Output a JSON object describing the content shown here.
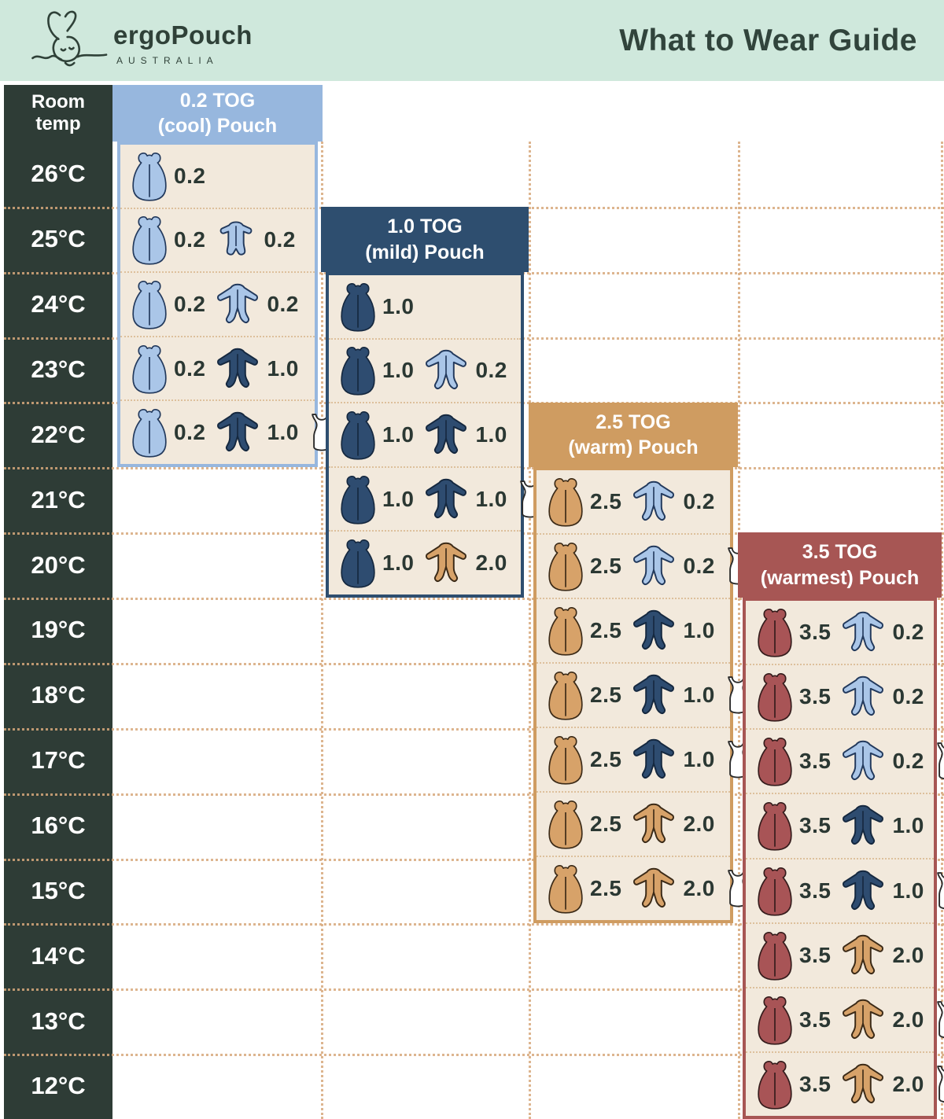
{
  "header": {
    "brand": "ergoPouch",
    "brand_sub": "AUSTRALIA",
    "title": "What to Wear Guide"
  },
  "table": {
    "room_temp_label": "Room\ntemp",
    "temps": [
      "26°C",
      "25°C",
      "24°C",
      "23°C",
      "22°C",
      "21°C",
      "20°C",
      "19°C",
      "18°C",
      "17°C",
      "16°C",
      "15°C",
      "14°C",
      "13°C",
      "12°C"
    ]
  },
  "colors": {
    "banner_bg": "#cfe8dc",
    "temp_column_bg": "#2e3c36",
    "panel_body_bg": "#f2e9dc",
    "tog_02_header": "#97b7de",
    "tog_10_header": "#2e4e6f",
    "tog_25_header": "#cf9c61",
    "tog_35_header": "#a75654",
    "grid_dots": "#d8a97c",
    "text_dark": "#2b3833"
  },
  "panels": [
    {
      "title_line1": "0.2 TOG",
      "title_line2": "(cool) Pouch",
      "rows": [
        {
          "temp": "26°C",
          "items": [
            {
              "icon": "pouch",
              "color": "lightblue",
              "tog": "0.2"
            }
          ]
        },
        {
          "temp": "25°C",
          "items": [
            {
              "icon": "pouch",
              "color": "lightblue",
              "tog": "0.2"
            },
            {
              "icon": "romper",
              "color": "lightblue",
              "tog": "0.2"
            }
          ]
        },
        {
          "temp": "24°C",
          "items": [
            {
              "icon": "pouch",
              "color": "lightblue",
              "tog": "0.2"
            },
            {
              "icon": "onesie",
              "color": "lightblue",
              "tog": "0.2"
            }
          ]
        },
        {
          "temp": "23°C",
          "items": [
            {
              "icon": "pouch",
              "color": "lightblue",
              "tog": "0.2"
            },
            {
              "icon": "onesie",
              "color": "navy",
              "tog": "1.0"
            }
          ]
        },
        {
          "temp": "22°C",
          "items": [
            {
              "icon": "pouch",
              "color": "lightblue",
              "tog": "0.2"
            },
            {
              "icon": "onesie",
              "color": "navy",
              "tog": "1.0"
            },
            {
              "icon": "singlet",
              "color": "white",
              "tog": ""
            }
          ]
        }
      ]
    },
    {
      "title_line1": "1.0 TOG",
      "title_line2": "(mild) Pouch",
      "rows": [
        {
          "temp": "24°C",
          "items": [
            {
              "icon": "pouch",
              "color": "navy",
              "tog": "1.0"
            }
          ]
        },
        {
          "temp": "23°C",
          "items": [
            {
              "icon": "pouch",
              "color": "navy",
              "tog": "1.0"
            },
            {
              "icon": "onesie",
              "color": "lightblue",
              "tog": "0.2"
            }
          ]
        },
        {
          "temp": "22°C",
          "items": [
            {
              "icon": "pouch",
              "color": "navy",
              "tog": "1.0"
            },
            {
              "icon": "onesie",
              "color": "navy",
              "tog": "1.0"
            }
          ]
        },
        {
          "temp": "21°C",
          "items": [
            {
              "icon": "pouch",
              "color": "navy",
              "tog": "1.0"
            },
            {
              "icon": "onesie",
              "color": "navy",
              "tog": "1.0"
            },
            {
              "icon": "singlet",
              "color": "white",
              "tog": ""
            }
          ]
        },
        {
          "temp": "20°C",
          "items": [
            {
              "icon": "pouch",
              "color": "navy",
              "tog": "1.0"
            },
            {
              "icon": "onesie",
              "color": "tan",
              "tog": "2.0"
            }
          ]
        }
      ]
    },
    {
      "title_line1": "2.5 TOG",
      "title_line2": "(warm) Pouch",
      "rows": [
        {
          "temp": "21°C",
          "items": [
            {
              "icon": "pouch",
              "color": "tan",
              "tog": "2.5"
            },
            {
              "icon": "onesie",
              "color": "lightblue",
              "tog": "0.2"
            }
          ]
        },
        {
          "temp": "20°C",
          "items": [
            {
              "icon": "pouch",
              "color": "tan",
              "tog": "2.5"
            },
            {
              "icon": "onesie",
              "color": "lightblue",
              "tog": "0.2"
            },
            {
              "icon": "singlet",
              "color": "white",
              "tog": ""
            }
          ]
        },
        {
          "temp": "19°C",
          "items": [
            {
              "icon": "pouch",
              "color": "tan",
              "tog": "2.5"
            },
            {
              "icon": "onesie",
              "color": "navy",
              "tog": "1.0"
            }
          ]
        },
        {
          "temp": "18°C",
          "items": [
            {
              "icon": "pouch",
              "color": "tan",
              "tog": "2.5"
            },
            {
              "icon": "onesie",
              "color": "navy",
              "tog": "1.0"
            },
            {
              "icon": "singlet",
              "color": "white",
              "tog": ""
            }
          ]
        },
        {
          "temp": "17°C",
          "items": [
            {
              "icon": "pouch",
              "color": "tan",
              "tog": "2.5"
            },
            {
              "icon": "onesie",
              "color": "navy",
              "tog": "1.0"
            },
            {
              "icon": "singlet",
              "color": "white",
              "tog": ""
            }
          ]
        },
        {
          "temp": "16°C",
          "items": [
            {
              "icon": "pouch",
              "color": "tan",
              "tog": "2.5"
            },
            {
              "icon": "onesie",
              "color": "tan",
              "tog": "2.0"
            }
          ]
        },
        {
          "temp": "15°C",
          "items": [
            {
              "icon": "pouch",
              "color": "tan",
              "tog": "2.5"
            },
            {
              "icon": "onesie",
              "color": "tan",
              "tog": "2.0"
            },
            {
              "icon": "singlet",
              "color": "white",
              "tog": ""
            }
          ]
        }
      ]
    },
    {
      "title_line1": "3.5 TOG",
      "title_line2": "(warmest) Pouch",
      "rows": [
        {
          "temp": "19°C",
          "items": [
            {
              "icon": "pouch",
              "color": "maroon",
              "tog": "3.5"
            },
            {
              "icon": "onesie",
              "color": "lightblue",
              "tog": "0.2"
            }
          ]
        },
        {
          "temp": "18°C",
          "items": [
            {
              "icon": "pouch",
              "color": "maroon",
              "tog": "3.5"
            },
            {
              "icon": "onesie",
              "color": "lightblue",
              "tog": "0.2"
            }
          ]
        },
        {
          "temp": "17°C",
          "items": [
            {
              "icon": "pouch",
              "color": "maroon",
              "tog": "3.5"
            },
            {
              "icon": "onesie",
              "color": "lightblue",
              "tog": "0.2"
            },
            {
              "icon": "singlet",
              "color": "white",
              "tog": ""
            }
          ]
        },
        {
          "temp": "16°C",
          "items": [
            {
              "icon": "pouch",
              "color": "maroon",
              "tog": "3.5"
            },
            {
              "icon": "onesie",
              "color": "navy",
              "tog": "1.0"
            }
          ]
        },
        {
          "temp": "15°C",
          "items": [
            {
              "icon": "pouch",
              "color": "maroon",
              "tog": "3.5"
            },
            {
              "icon": "onesie",
              "color": "navy",
              "tog": "1.0"
            },
            {
              "icon": "singlet",
              "color": "white",
              "tog": ""
            }
          ]
        },
        {
          "temp": "14°C",
          "items": [
            {
              "icon": "pouch",
              "color": "maroon",
              "tog": "3.5"
            },
            {
              "icon": "onesie",
              "color": "tan",
              "tog": "2.0"
            }
          ]
        },
        {
          "temp": "13°C",
          "items": [
            {
              "icon": "pouch",
              "color": "maroon",
              "tog": "3.5"
            },
            {
              "icon": "onesie",
              "color": "tan",
              "tog": "2.0"
            },
            {
              "icon": "singlet",
              "color": "white",
              "tog": ""
            }
          ]
        },
        {
          "temp": "12°C",
          "items": [
            {
              "icon": "pouch",
              "color": "maroon",
              "tog": "3.5"
            },
            {
              "icon": "onesie",
              "color": "tan",
              "tog": "2.0"
            },
            {
              "icon": "singlet",
              "color": "white",
              "tog": ""
            }
          ]
        }
      ]
    }
  ]
}
